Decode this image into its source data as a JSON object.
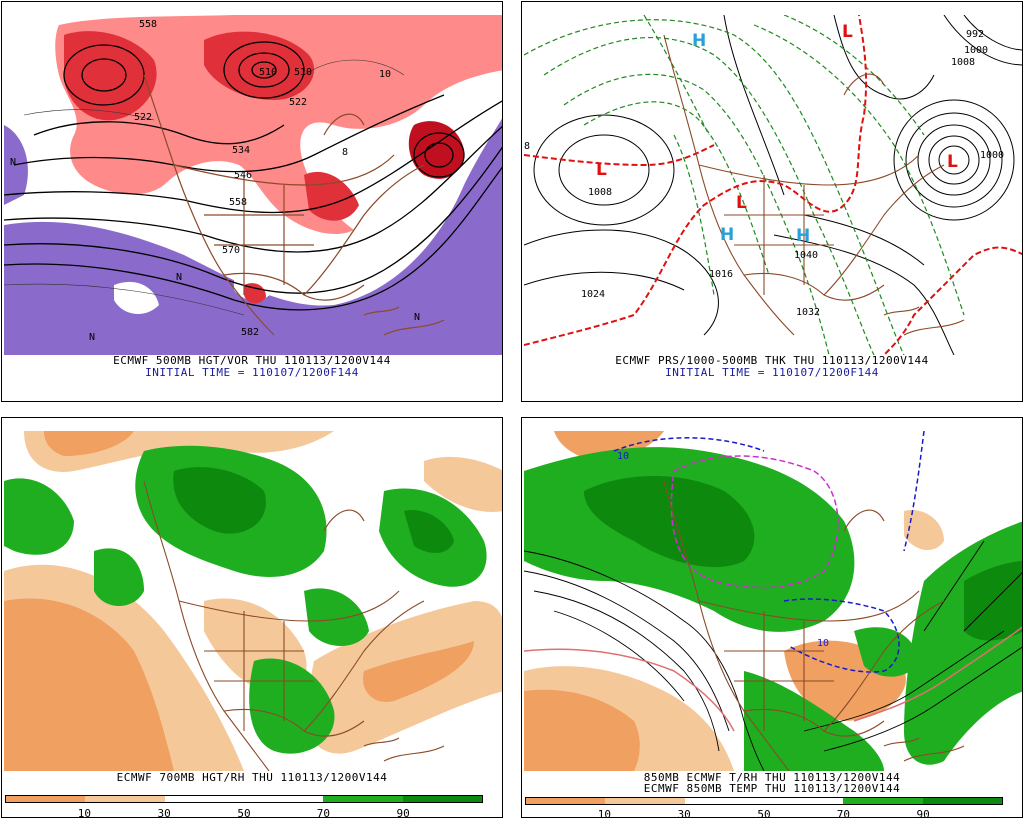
{
  "panels": {
    "tl": {
      "caption": "ECMWF 500MB HGT/VOR THU 110113/1200V144",
      "init": "INITIAL TIME = 110107/1200F144",
      "contour_labels": [
        "558",
        "522",
        "510",
        "534",
        "546",
        "558",
        "570",
        "582",
        "510",
        "522",
        "10",
        "8"
      ],
      "marks": [
        "N",
        "N",
        "N",
        "N"
      ],
      "colors": {
        "vort_hi": "#e0303a",
        "vort_lo": "#ff8a8a",
        "vort_neg": "#8a6acb"
      }
    },
    "tr": {
      "caption": "ECMWF PRS/1000-500MB THK THU 110113/1200V144",
      "init": "INITIAL TIME = 110107/1200F144",
      "contour_labels": [
        "992",
        "1000",
        "1008",
        "1008",
        "1016",
        "1024",
        "1032",
        "1040",
        "1000",
        "8"
      ],
      "lows": [
        "L",
        "L",
        "L",
        "L"
      ],
      "highs": [
        "H",
        "H",
        "H"
      ],
      "colors": {
        "low": "#e01010",
        "high": "#2aa0d8",
        "thick": "#1f8a1f",
        "freeze": "#e01010"
      }
    },
    "bl": {
      "caption": "ECMWF 700MB HGT/RH THU 110113/1200V144",
      "colorbar_ticks": [
        "10",
        "30",
        "50",
        "70",
        "90"
      ],
      "colors": {
        "dry1": "#f0a060",
        "dry2": "#f5c89a",
        "moist1": "#1fae1f",
        "moist2": "#0d8a0d"
      }
    },
    "br": {
      "caption": "850MB ECMWF T/RH THU 110113/1200V144",
      "caption2": "ECMWF 850MB TEMP THU 110113/1200V144",
      "contour_labels": [
        "10",
        "10"
      ],
      "colorbar_ticks": [
        "10",
        "30",
        "50",
        "70",
        "90"
      ],
      "colors": {
        "cold": "#1a1acc",
        "freeze": "#cc30cc",
        "warm": "#e07070"
      }
    }
  }
}
